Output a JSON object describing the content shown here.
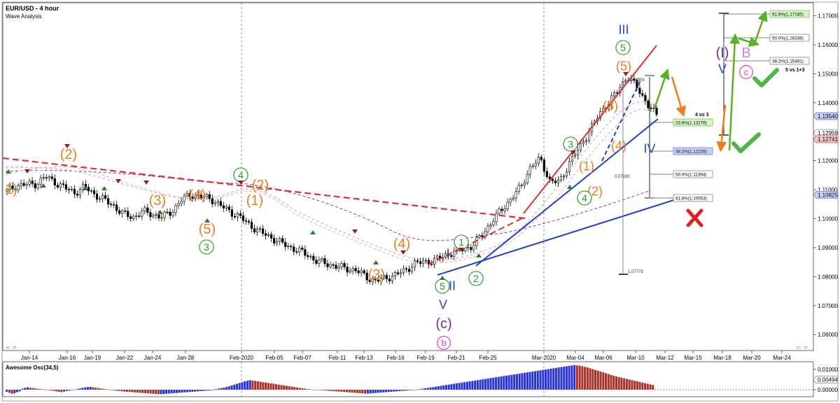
{
  "header": {
    "title": "EUR/USD - 4 hour",
    "subtitle": "Wave Analysis"
  },
  "oscillator": {
    "title": "Awesome Osc(34,5)",
    "ticks": [
      "0.01000",
      "0.00494",
      "0.00000"
    ],
    "values": [
      -0.001,
      -0.0015,
      -0.002,
      -0.0018,
      -0.0012,
      -0.0008,
      0.0005,
      0.0009,
      0.0012,
      0.001,
      0.0008,
      0.0006,
      0.0004,
      0.0003,
      0.0002,
      0.0001,
      -0.0002,
      -0.0004,
      -0.0006,
      -0.0008,
      -0.001,
      -0.0012,
      -0.0009,
      -0.0006,
      -0.0004,
      -0.0002,
      0.0001,
      0.0003,
      0.0006,
      0.0009,
      0.0011,
      0.0013,
      0.0014,
      0.0012,
      0.001,
      0.0008,
      0.0006,
      0.0004,
      0.0003,
      0.0001,
      -0.0001,
      -0.0003,
      -0.0005,
      -0.0006,
      -0.0008,
      -0.0009,
      -0.001,
      -0.0011,
      -0.0012,
      -0.0013,
      -0.0014,
      -0.0015,
      -0.0016,
      -0.0017,
      -0.0018,
      -0.0019,
      -0.002,
      -0.0021,
      -0.0022,
      -0.0022,
      -0.0021,
      -0.002,
      -0.0019,
      -0.0018,
      -0.0017,
      -0.0016,
      -0.0015,
      -0.0014,
      -0.0013,
      -0.0012,
      -0.0011,
      -0.001,
      -0.0009,
      -0.0008,
      -0.0007,
      -0.0006,
      -0.0005,
      -0.0004,
      -0.0003,
      -0.0002,
      0.0003,
      0.0005,
      0.0008,
      0.001,
      0.0013,
      0.0017,
      0.0021,
      0.0025,
      0.0029,
      0.0033,
      0.0037,
      0.0041,
      0.0044,
      0.0047,
      0.0045,
      0.0043,
      0.0041,
      0.0039,
      0.0037,
      0.0035,
      0.0033,
      0.0031,
      0.0029,
      0.0027,
      0.0025,
      0.0023,
      0.0021,
      0.0019,
      0.0017,
      0.0015,
      0.0013,
      0.0011,
      0.0009,
      0.0007,
      0.0005,
      0.0003,
      0.0002,
      0.0001,
      0.0,
      -0.0001,
      -0.0002,
      -0.0003,
      -0.0004,
      -0.0005,
      -0.0006,
      -0.0007,
      -0.0008,
      -0.0009,
      -0.001,
      -0.0011,
      -0.0012,
      -0.0013,
      -0.0014,
      -0.0015,
      -0.0016,
      -0.0017,
      -0.0018,
      -0.0019,
      -0.0019,
      -0.0018,
      -0.0017,
      -0.0016,
      -0.0015,
      -0.0014,
      -0.0013,
      -0.0012,
      -0.0011,
      -0.001,
      -0.0009,
      -0.0008,
      -0.0007,
      -0.0006,
      -0.0005,
      -0.0004,
      -0.0003,
      -0.0002,
      -0.0001,
      0.0001,
      0.0003,
      0.0005,
      0.0007,
      0.0009,
      0.0011,
      0.0013,
      0.0015,
      0.0017,
      0.0019,
      0.0021,
      0.0023,
      0.0025,
      0.0027,
      0.0029,
      0.0031,
      0.0033,
      0.0035,
      0.0037,
      0.0039,
      0.0041,
      0.0043,
      0.0045,
      0.0047,
      0.0049,
      0.0051,
      0.0053,
      0.0055,
      0.0057,
      0.0059,
      0.0061,
      0.0063,
      0.0065,
      0.0067,
      0.0069,
      0.0071,
      0.0073,
      0.0075,
      0.0077,
      0.0079,
      0.0081,
      0.0083,
      0.0085,
      0.0087,
      0.0089,
      0.0091,
      0.0093,
      0.0095,
      0.0097,
      0.0099,
      0.0101,
      0.0103,
      0.0105,
      0.0107,
      0.0109,
      0.0111,
      0.0113,
      0.0115,
      0.0117,
      0.0119,
      0.012,
      0.0119,
      0.0118,
      0.0115,
      0.0112,
      0.0109,
      0.0105,
      0.0101,
      0.0097,
      0.0093,
      0.0089,
      0.0085,
      0.0081,
      0.0077,
      0.0073,
      0.0069,
      0.0065,
      0.0062,
      0.0059,
      0.0056,
      0.0053,
      0.005,
      0.0047,
      0.0044,
      0.0041,
      0.0038,
      0.0035,
      0.0032,
      0.0029,
      0.0026,
      0.0023
    ]
  },
  "price_tags": [
    {
      "label": "1.13540",
      "fill": "#c9d1f5",
      "stroke": "#6f7fd9",
      "price": 1.1354
    },
    {
      "label": "1.12959",
      "fill": "#ffffff",
      "stroke": "#888888",
      "price": 1.12959
    },
    {
      "label": "1.12741",
      "fill": "#f5c7c7",
      "stroke": "#d44c4c",
      "price": 1.12741
    },
    {
      "label": "1.10825",
      "fill": "#c9d1f5",
      "stroke": "#6f7fd9",
      "price": 1.10825
    }
  ],
  "fib_labels": [
    {
      "text": "61.8%(1.17185)",
      "fill": "#d7f5c8",
      "stroke": "#7cc35a"
    },
    {
      "text": "50.0%(1.16338)",
      "fill": "#ffffff",
      "stroke": "#888888"
    },
    {
      "text": "38.2%(1.15491)",
      "fill": "#ffffff",
      "stroke": "#888888"
    },
    {
      "text": "23.6%(1.13276)",
      "fill": "#d7f5c8",
      "stroke": "#7cc35a"
    },
    {
      "text": "38.2%(1.12235)",
      "fill": "#c9d1f5",
      "stroke": "#6f7fd9"
    },
    {
      "text": "50.0%(1.11394)",
      "fill": "#ffffff",
      "stroke": "#888888"
    },
    {
      "text": "61.8%(1.10553)",
      "fill": "#ffffff",
      "stroke": "#888888"
    }
  ],
  "text_notes": [
    "5 vs 1+3",
    "4 vs 3",
    "1.14959",
    "0.07180",
    "1.07779"
  ],
  "wave_labels": [
    {
      "text": "1)",
      "color": "#f07c1e",
      "style": "plain"
    },
    {
      "text": "(2)",
      "color": "#f07c1e",
      "style": "plain"
    },
    {
      "text": "(3)",
      "color": "#f07c1e",
      "style": "plain"
    },
    {
      "text": "(4)",
      "color": "#f07c1e",
      "style": "plain"
    },
    {
      "text": "(5)",
      "color": "#f07c1e",
      "style": "plain"
    },
    {
      "text": "3",
      "color": "#2a9a2a",
      "style": "circle"
    },
    {
      "text": "4",
      "color": "#2a9a2a",
      "style": "circle"
    },
    {
      "text": "(2)",
      "color": "#f07c1e",
      "style": "plain"
    },
    {
      "text": "(1)",
      "color": "#f07c1e",
      "style": "plain"
    },
    {
      "text": "(4)",
      "color": "#f07c1e",
      "style": "plain"
    },
    {
      "text": "(3)",
      "color": "#f07c1e",
      "style": "plain"
    },
    {
      "text": "5",
      "color": "#2a9a2a",
      "style": "circle"
    },
    {
      "text": "1",
      "color": "#2a9a2a",
      "style": "circle"
    },
    {
      "text": "2",
      "color": "#2a9a2a",
      "style": "circle"
    },
    {
      "text": "I",
      "color": "#2747c7",
      "style": "plain"
    },
    {
      "text": "II",
      "color": "#2747c7",
      "style": "plain"
    },
    {
      "text": "V",
      "color": "#2747c7",
      "style": "plain"
    },
    {
      "text": "(c)",
      "color": "#7b2d8f",
      "style": "plain"
    },
    {
      "text": "b",
      "color": "#e63ec9",
      "style": "circle"
    },
    {
      "text": "3",
      "color": "#2a9a2a",
      "style": "circle"
    },
    {
      "text": "(1)",
      "color": "#f07c1e",
      "style": "plain"
    },
    {
      "text": "(2)",
      "color": "#f07c1e",
      "style": "plain"
    },
    {
      "text": "4",
      "color": "#2a9a2a",
      "style": "circle"
    },
    {
      "text": "(3)",
      "color": "#f07c1e",
      "style": "plain"
    },
    {
      "text": "(4)",
      "color": "#f07c1e",
      "style": "plain"
    },
    {
      "text": "(5)",
      "color": "#f07c1e",
      "style": "plain"
    },
    {
      "text": "5",
      "color": "#2a9a2a",
      "style": "circle"
    },
    {
      "text": "III",
      "color": "#2747c7",
      "style": "plain"
    },
    {
      "text": "IV",
      "color": "#2747c7",
      "style": "plain"
    },
    {
      "text": "(I)",
      "color": "#7b2d8f",
      "style": "plain"
    },
    {
      "text": "V",
      "color": "#2747c7",
      "style": "plain"
    },
    {
      "text": "B",
      "color": "#c08be0",
      "style": "plain"
    },
    {
      "text": "c",
      "color": "#e63ec9",
      "style": "circle"
    }
  ],
  "chart_data": {
    "type": "candlestick",
    "title": "EUR/USD - 4 hour",
    "subtitle": "Wave Analysis",
    "y_ticks": [
      "1.17000",
      "1.16000",
      "1.15000",
      "1.14000",
      "1.13000",
      "1.12000",
      "1.11000",
      "1.10000",
      "1.09000",
      "1.08000",
      "1.07000",
      "1.06000"
    ],
    "ylim": [
      1.0545,
      1.1745
    ],
    "x_ticks": [
      "Jan-14",
      "Jan-16",
      "Jan-19",
      "Jan-22",
      "Jan-24",
      "Jan-28",
      "Feb-2020",
      "Feb-05",
      "Feb-07",
      "Feb-11",
      "Feb-13",
      "Feb-16",
      "Feb-19",
      "Feb-21",
      "Feb-25",
      "Mar-2020",
      "Mar-04",
      "Mar-06",
      "Mar-10",
      "Mar-12",
      "Mar-15",
      "Mar-18",
      "Mar-20",
      "Mar-24"
    ],
    "series": [
      {
        "close_path": [
          1.1095,
          1.1115,
          1.1118,
          1.112,
          1.1145,
          1.1125,
          1.1105,
          1.109,
          1.111,
          1.1085,
          1.1065,
          1.1045,
          1.1015,
          1.1005,
          1.1025,
          1.1015,
          1.1005,
          1.1025,
          1.1065,
          1.1085,
          1.1075,
          1.107,
          1.1045,
          1.1025,
          1.1005,
          1.098,
          1.0955,
          1.094,
          1.092,
          1.0905,
          1.089,
          1.0875,
          1.0852,
          1.0845,
          1.0835,
          1.0828,
          1.0822,
          1.08,
          1.0785,
          1.0795,
          1.0805,
          1.082,
          1.0845,
          1.085,
          1.0855,
          1.087,
          1.0885,
          1.0895,
          1.0905,
          1.0945,
          1.099,
          1.103,
          1.107,
          1.111,
          1.118,
          1.1205,
          1.113,
          1.1125,
          1.1195,
          1.124,
          1.13,
          1.1355,
          1.14,
          1.144,
          1.1495,
          1.145,
          1.14,
          1.1354
        ]
      }
    ],
    "fibonacci_levels": [
      {
        "label": "61.8%",
        "value": 1.17185
      },
      {
        "label": "50.0%",
        "value": 1.16338
      },
      {
        "label": "38.2%",
        "value": 1.15491
      },
      {
        "label": "23.6%",
        "value": 1.13276
      },
      {
        "label": "38.2%",
        "value": 1.12235
      },
      {
        "label": "50.0%",
        "value": 1.11394
      },
      {
        "label": "61.8%",
        "value": 1.10553
      }
    ],
    "grid": false
  }
}
